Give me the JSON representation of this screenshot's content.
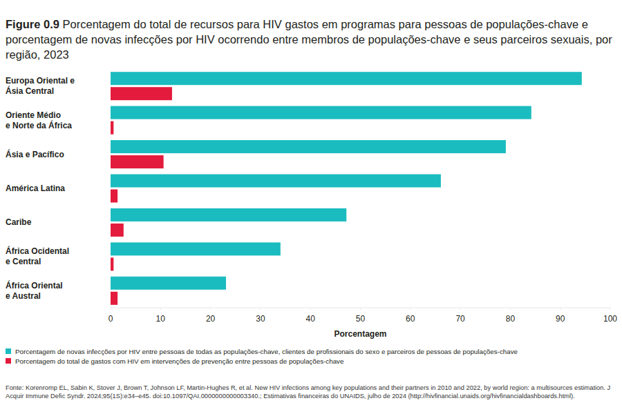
{
  "chart_data": {
    "type": "bar",
    "orientation": "horizontal",
    "title": "Figure 0.9 Porcentagem do total de recursos para HIV gastos em programas para pessoas de populações-chave e porcentagem de novas infecções por HIV ocorrendo entre membros de populações-chave e seus parceiros sexuais, por região, 2023",
    "categories": [
      "Europa Oriental e\nÁsia Central",
      "Oriente Médio\ne Norte da África",
      "Ásia e Pacífico",
      "América Latina",
      "Caribe",
      "África Ocidental\ne Central",
      "África Oriental\ne Austral"
    ],
    "series": [
      {
        "name": "Porcentagem de novas infecções por HIV entre pessoas de todas as populações-chave, clientes de profissionais do sexo e parceiros de pessoas de populações-chave",
        "color": "#1bbcbf",
        "values": [
          94.3,
          84.2,
          79.1,
          66.1,
          47.2,
          34,
          23.1
        ]
      },
      {
        "name": "Porcentagem do total de gastos com HIV em intervenções de prevenção entre pessoas de populações-chave",
        "color": "#e31b3c",
        "values": [
          12.3,
          0.6,
          10.6,
          1.4,
          2.6,
          0.6,
          1.4
        ]
      }
    ],
    "x_label": "Porcentagem",
    "xlim": [
      0,
      100
    ],
    "xticks": [
      0,
      10,
      20,
      30,
      40,
      50,
      60,
      70,
      80,
      90,
      100
    ],
    "grid": false,
    "legend": "bottom-left",
    "annotations": [
      "Fonte: Korenromp EL, Sabin K, Stover J, Brown T, Johnson LF, Martin-Hughes R, et al. New HIV infections among key populations and their partners in 2010 and 2022, by world region: a multisources estimation. J Acquir Immune Defic Syndr. 2024;95(1S):e34–e45. doi:10.1097/QAI.0000000000003340.; Estimativas financeiras do UNAIDS, julho de 2024 (http://hivfinancial.unaids.org/hivfinancialdashboards.html)."
    ]
  }
}
